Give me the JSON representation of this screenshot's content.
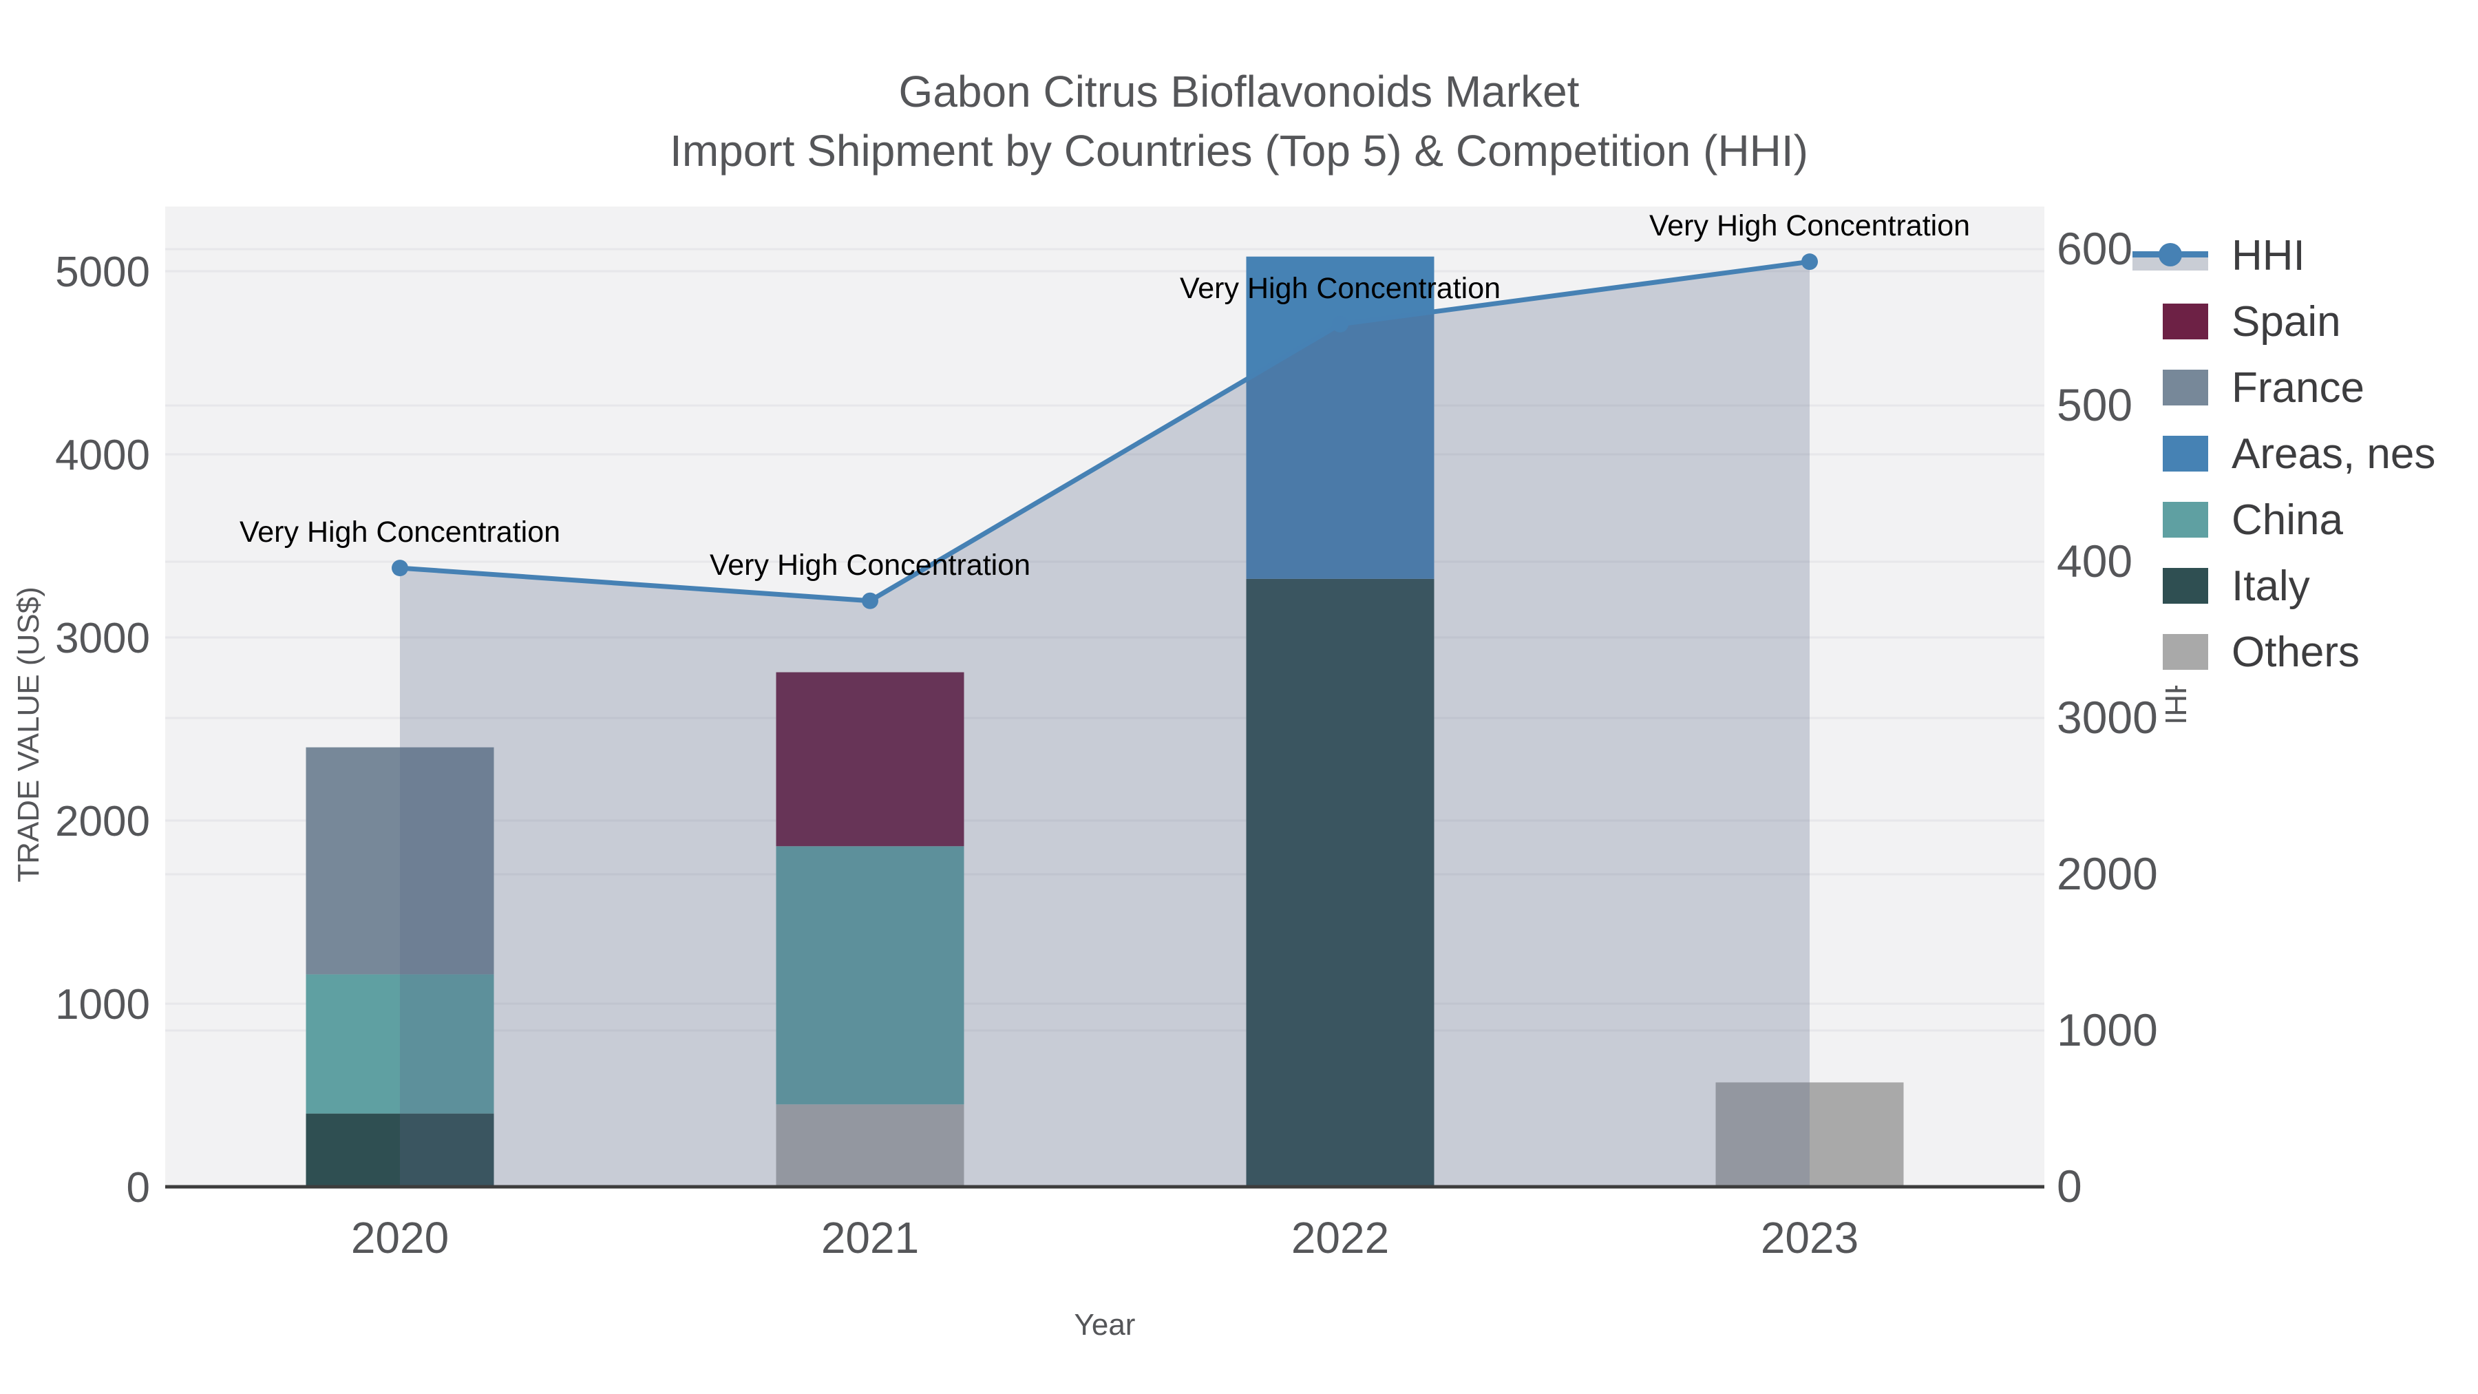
{
  "title": {
    "line1": "Gabon Citrus Bioflavonoids Market",
    "line2": "Import Shipment by Countries (Top 5) & Competition (HHI)"
  },
  "axes": {
    "x": {
      "title": "Year",
      "ticks": [
        "2020",
        "2021",
        "2022",
        "2023"
      ]
    },
    "y_left": {
      "title": "TRADE VALUE (US$)",
      "ticks": [
        "0",
        "1000",
        "2000",
        "3000",
        "4000",
        "5000"
      ],
      "max": 5000
    },
    "y_right": {
      "title": "HHI",
      "ticks": [
        "0",
        "1000",
        "2000",
        "3000",
        "4000",
        "5000",
        "6000"
      ],
      "max": 6000
    }
  },
  "annotation_label": "Very High Concentration",
  "colors": {
    "plot_background": "#f2f2f3",
    "gridline": "#e7e7ea",
    "axis_line": "#3d3d3d",
    "text": "#555659",
    "annotation_text": "#000000",
    "hhi_line": "#4681b4",
    "hhi_fill": "rgba(90,105,135,0.27)"
  },
  "legend": {
    "items": [
      {
        "label": "HHI",
        "type": "line",
        "color": "#4681b4",
        "band": "#c9cdd5"
      },
      {
        "label": "Spain",
        "type": "swatch",
        "color": "#6d2145"
      },
      {
        "label": "France",
        "type": "swatch",
        "color": "#778899"
      },
      {
        "label": "Areas, nes",
        "type": "swatch",
        "color": "#4682b4"
      },
      {
        "label": "China",
        "type": "swatch",
        "color": "#5fa0a2"
      },
      {
        "label": "Italy",
        "type": "swatch",
        "color": "#2f4f52"
      },
      {
        "label": "Others",
        "type": "swatch",
        "color": "#a9a9a9"
      }
    ]
  },
  "chart_data": {
    "type": "bar",
    "subtype": "stacked bars (left axis, trade value US$) + HHI line with area fill (right axis)",
    "categories": [
      "2020",
      "2021",
      "2022",
      "2023"
    ],
    "series": [
      {
        "name": "Spain",
        "color": "#6d2145",
        "values": [
          0,
          950,
          0,
          0
        ]
      },
      {
        "name": "France",
        "color": "#778899",
        "values": [
          1240,
          0,
          0,
          0
        ]
      },
      {
        "name": "Areas, nes",
        "color": "#4682b4",
        "values": [
          0,
          0,
          1760,
          0
        ]
      },
      {
        "name": "China",
        "color": "#5fa0a2",
        "values": [
          760,
          1410,
          0,
          0
        ]
      },
      {
        "name": "Italy",
        "color": "#2f4f52",
        "values": [
          400,
          0,
          3320,
          0
        ]
      },
      {
        "name": "Others",
        "color": "#a9a9a9",
        "values": [
          0,
          450,
          0,
          570
        ]
      }
    ],
    "stack_order": "bottom-to-top is reverse of legend order (Others at bottom, Spain at top)",
    "line_series": {
      "name": "HHI",
      "axis": "right",
      "values": [
        3960,
        3750,
        5520,
        5920
      ],
      "point_annotations": [
        "Very High Concentration",
        "Very High Concentration",
        "Very High Concentration",
        "Very High Concentration"
      ]
    },
    "title": "Gabon Citrus Bioflavonoids Market — Import Shipment by Countries (Top 5) & Competition (HHI)",
    "xlabel": "Year",
    "ylabel_left": "TRADE VALUE (US$)",
    "ylabel_right": "HHI",
    "ylim_left": [
      0,
      5000
    ],
    "ylim_right": [
      0,
      6000
    ],
    "grid": true,
    "legend_position": "right"
  }
}
